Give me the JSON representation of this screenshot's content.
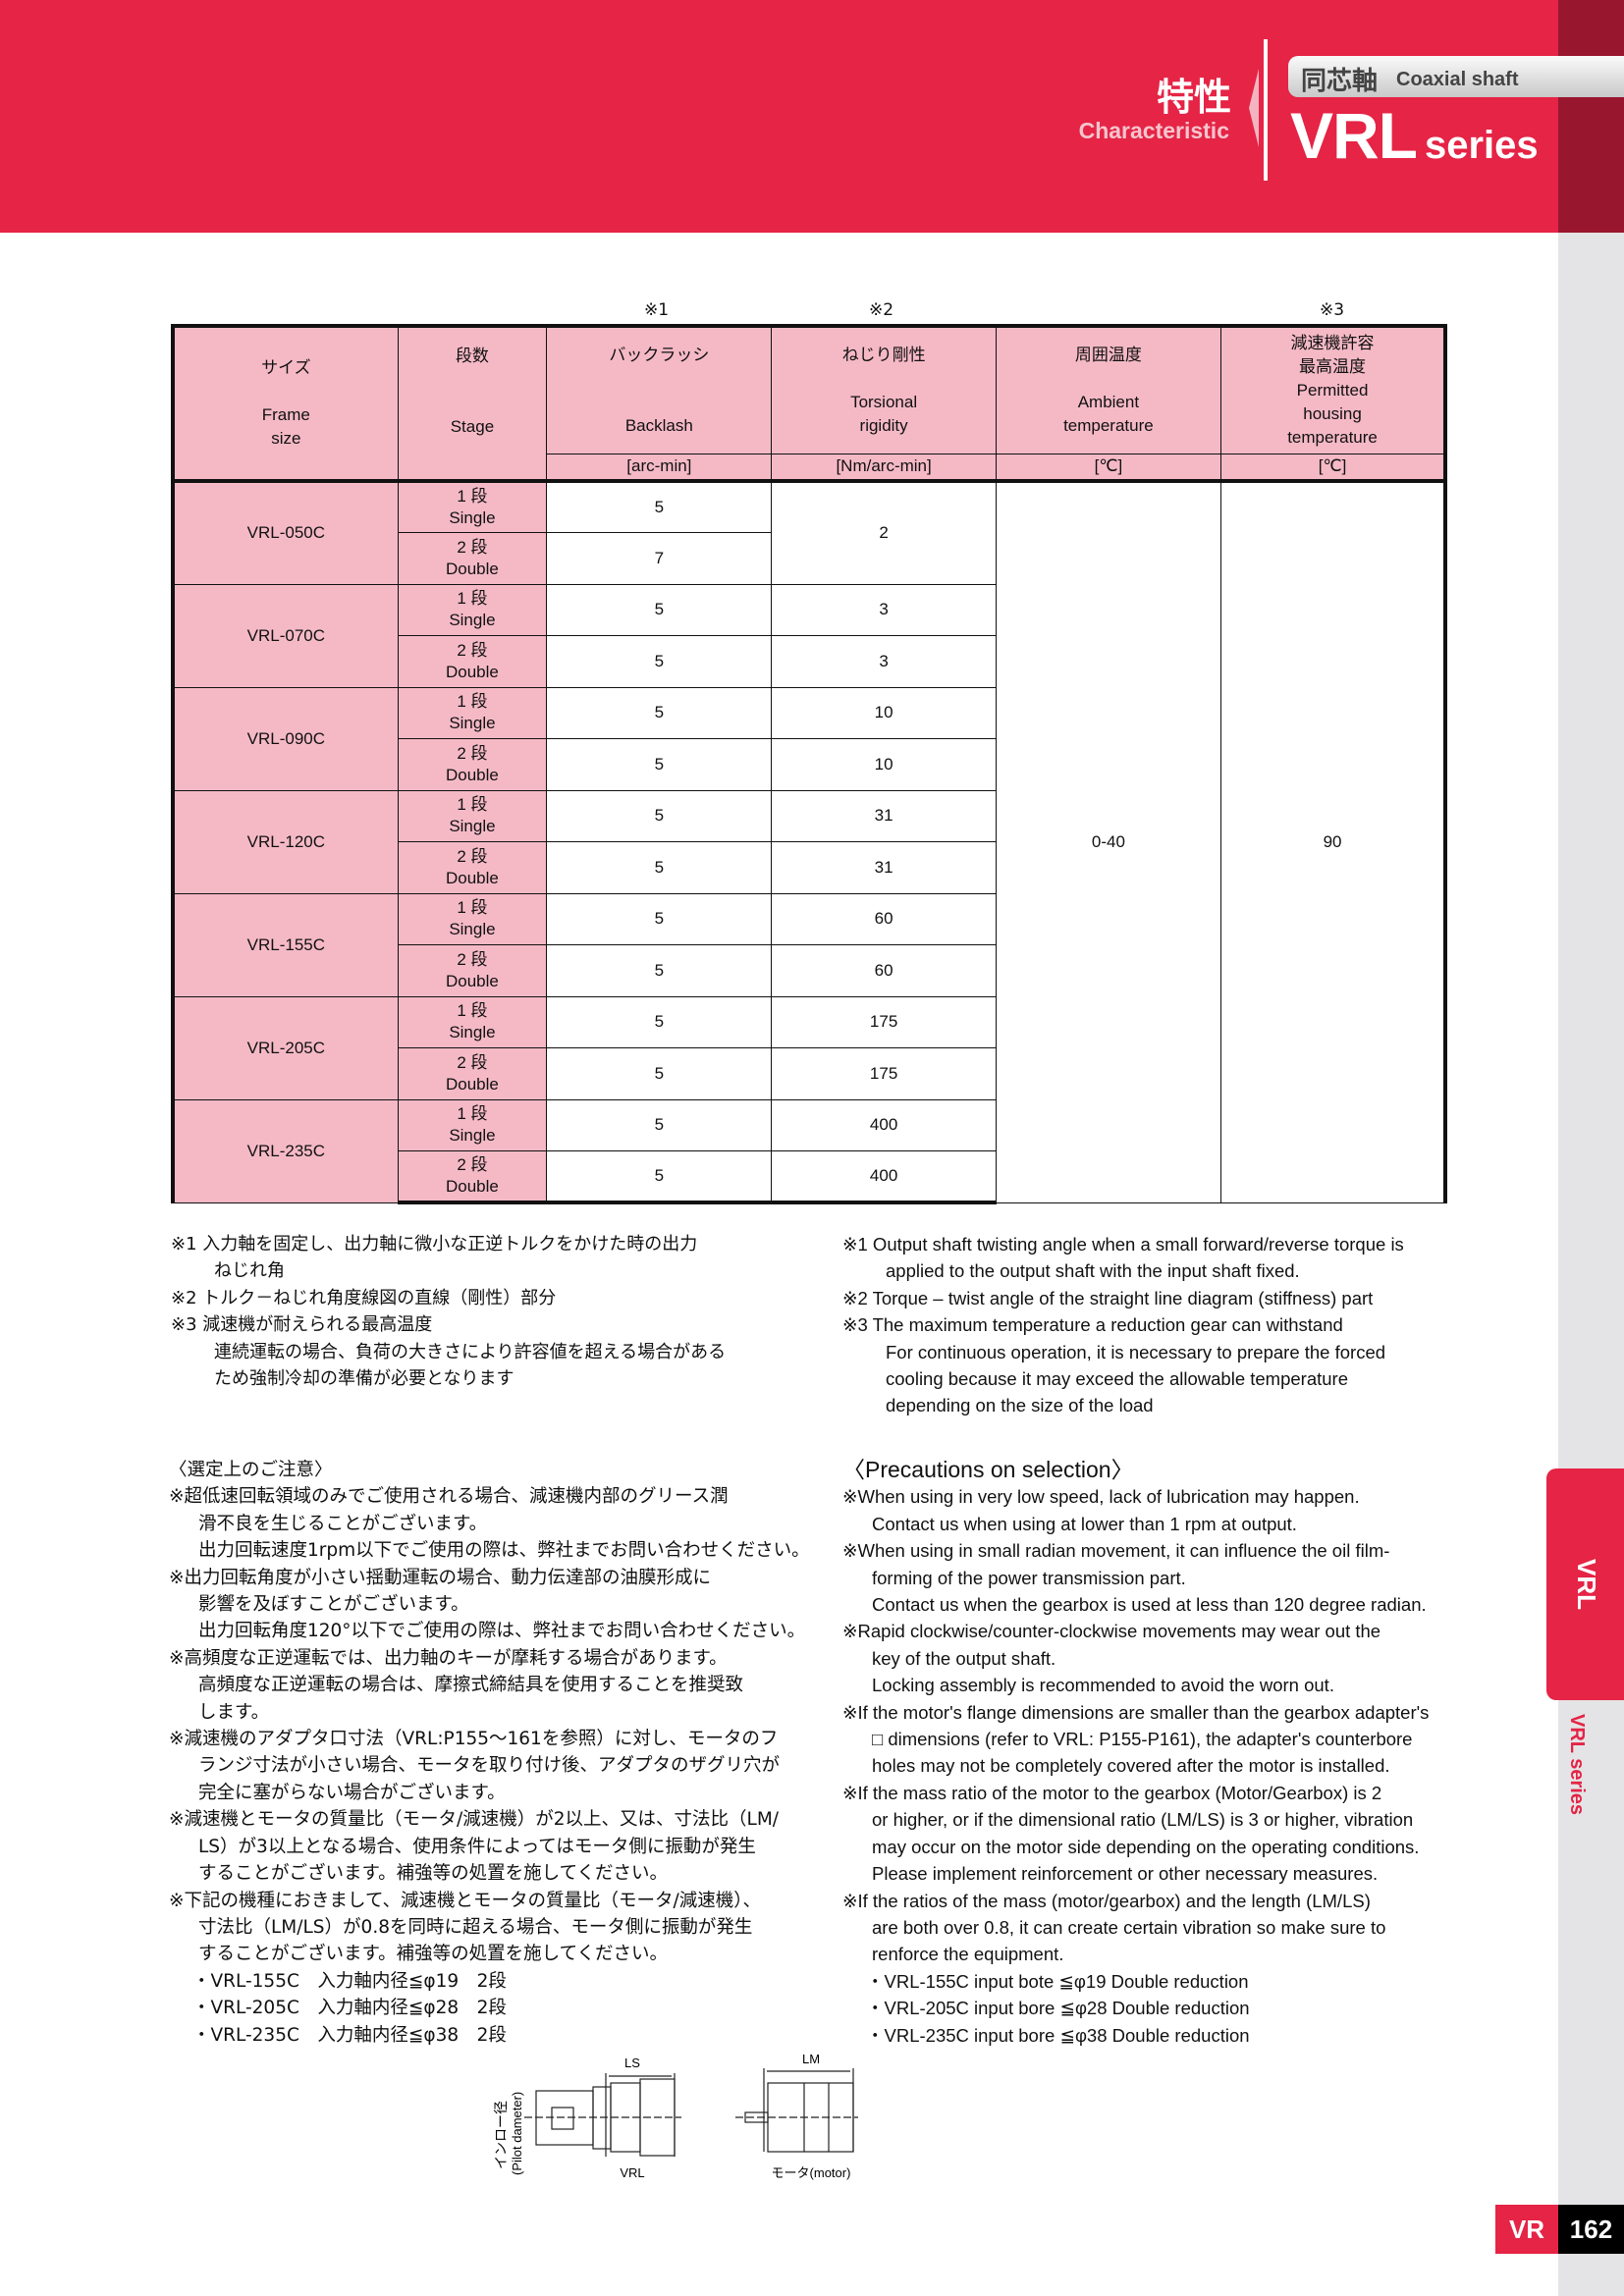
{
  "header": {
    "title_jp": "特性",
    "title_en": "Characteristic",
    "category_jp": "同芯軸",
    "category_en": "Coaxial shaft",
    "series_name": "VRL",
    "series_suffix": "series"
  },
  "table": {
    "marks": [
      "※1",
      "※2",
      "※3"
    ],
    "headers": [
      {
        "jp": "サイズ",
        "en1": "Frame",
        "en2": "size"
      },
      {
        "jp": "段数",
        "en1": "Stage",
        "en2": ""
      },
      {
        "jp": "バックラッシ",
        "en1": "Backlash",
        "en2": "",
        "unit": "[arc-min]"
      },
      {
        "jp": "ねじり剛性",
        "en1": "Torsional",
        "en2": "rigidity",
        "unit": "[Nm/arc-min]"
      },
      {
        "jp": "周囲温度",
        "en1": "Ambient",
        "en2": "temperature",
        "unit": "[℃]"
      },
      {
        "jp1": "減速機許容",
        "jp2": "最高温度",
        "en1": "Permitted",
        "en2": "housing",
        "en3": "temperature",
        "unit": "[℃]"
      }
    ],
    "stages": [
      {
        "jp": "1 段",
        "en": "Single"
      },
      {
        "jp": "2 段",
        "en": "Double"
      }
    ],
    "rows": [
      {
        "size": "VRL-050C",
        "backlash": [
          "5",
          "7"
        ],
        "rigidity": [
          "2"
        ]
      },
      {
        "size": "VRL-070C",
        "backlash": [
          "5",
          "5"
        ],
        "rigidity": [
          "3",
          "3"
        ]
      },
      {
        "size": "VRL-090C",
        "backlash": [
          "5",
          "5"
        ],
        "rigidity": [
          "10",
          "10"
        ]
      },
      {
        "size": "VRL-120C",
        "backlash": [
          "5",
          "5"
        ],
        "rigidity": [
          "31",
          "31"
        ]
      },
      {
        "size": "VRL-155C",
        "backlash": [
          "5",
          "5"
        ],
        "rigidity": [
          "60",
          "60"
        ]
      },
      {
        "size": "VRL-205C",
        "backlash": [
          "5",
          "5"
        ],
        "rigidity": [
          "175",
          "175"
        ]
      },
      {
        "size": "VRL-235C",
        "backlash": [
          "5",
          "5"
        ],
        "rigidity": [
          "400",
          "400"
        ]
      }
    ],
    "ambient": "0-40",
    "housing": "90"
  },
  "notes_jp": [
    "※1 入力軸を固定し、出力軸に微小な正逆トルクをかけた時の出力",
    "ねじれ角",
    "※2 トルク－ねじれ角度線図の直線（剛性）部分",
    "※3 減速機が耐えられる最高温度",
    "連続運転の場合、負荷の大きさにより許容値を超える場合がある",
    "ため強制冷却の準備が必要となります"
  ],
  "notes_en": [
    "※1 Output shaft twisting angle when a small forward/reverse torque is",
    "applied to the output shaft with the input shaft fixed.",
    "※2 Torque – twist angle of the straight line diagram (stiffness) part",
    "※3 The maximum temperature a reduction gear can withstand",
    "For continuous operation, it is necessary to prepare the forced",
    "cooling because it may exceed the allowable temperature",
    "depending on the size of the load"
  ],
  "precautions_jp": {
    "title": "〈選定上のご注意〉",
    "lines": [
      "※超低速回転領域のみでご使用される場合、減速機内部のグリース潤",
      "滑不良を生じることがございます。",
      "出力回転速度1rpm以下でご使用の際は、弊社までお問い合わせください。",
      "※出力回転角度が小さい揺動運転の場合、動力伝達部の油膜形成に",
      "影響を及ぼすことがございます。",
      "出力回転角度120°以下でご使用の際は、弊社までお問い合わせください。",
      "※高頻度な正逆運転では、出力軸のキーが摩耗する場合があります。",
      "高頻度な正逆運転の場合は、摩擦式締結具を使用することを推奨致",
      "します。",
      "※減速機のアダプタ口寸法（VRL:P155～161を参照）に対し、モータのフ",
      "ランジ寸法が小さい場合、モータを取り付け後、アダプタのザグリ穴が",
      "完全に塞がらない場合がございます。",
      "※減速機とモータの質量比（モータ/減速機）が2以上、又は、寸法比（LM/",
      "LS）が3以上となる場合、使用条件によってはモータ側に振動が発生",
      "することがございます。補強等の処置を施してください。",
      "※下記の機種におきまして、減速機とモータの質量比（モータ/減速機）、",
      "寸法比（LM/LS）が0.8を同時に超える場合、モータ側に振動が発生",
      "することがございます。補強等の処置を施してください。",
      "・VRL-155C　入力軸内径≦φ19　2段",
      "・VRL-205C　入力軸内径≦φ28　2段",
      "・VRL-235C　入力軸内径≦φ38　2段"
    ]
  },
  "precautions_en": {
    "title": "〈Precautions on selection〉",
    "lines": [
      "※When using in very low speed, lack of lubrication may happen.",
      "Contact us when using at lower than 1 rpm at output.",
      "※When using in small radian movement, it can influence the oil film-",
      "forming of the power transmission part.",
      "Contact us when the gearbox is used at less than 120 degree radian.",
      "※Rapid clockwise/counter-clockwise movements may wear out the",
      "key of the output shaft.",
      "Locking assembly is recommended to avoid the worn out.",
      "※If the motor's flange dimensions are smaller than the gearbox adapter's",
      "□ dimensions (refer to VRL: P155-P161), the adapter's counterbore",
      "holes may not be completely covered after the motor is installed.",
      "※If the mass ratio of the motor to the gearbox (Motor/Gearbox) is 2",
      "or higher, or if the dimensional ratio (LM/LS) is 3 or higher, vibration",
      "may occur on the motor side depending on the operating conditions.",
      "Please implement reinforcement or other necessary measures.",
      "※If the ratios of the mass (motor/gearbox) and the length (LM/LS)",
      "are both over 0.8, it can create certain vibration so make sure to",
      "renforce the equipment.",
      "・VRL-155C  input bote ≦φ19  Double reduction",
      "・VRL-205C  input bore ≦φ28  Double reduction",
      "・VRL-235C  input bore ≦φ38  Double reduction"
    ]
  },
  "diagram": {
    "ls": "LS",
    "lm": "LM",
    "pilot": "インロー径",
    "pilot_en": "(Pilot dameter)",
    "vrl": "VRL",
    "motor": "モータ(motor)"
  },
  "side": {
    "tab": "VRL",
    "series": "VRL series"
  },
  "footer": {
    "section": "VR",
    "page": "162"
  },
  "colors": {
    "brand_red": "#e52446",
    "dark_red": "#98172e",
    "table_pink": "#f5b9c6"
  }
}
